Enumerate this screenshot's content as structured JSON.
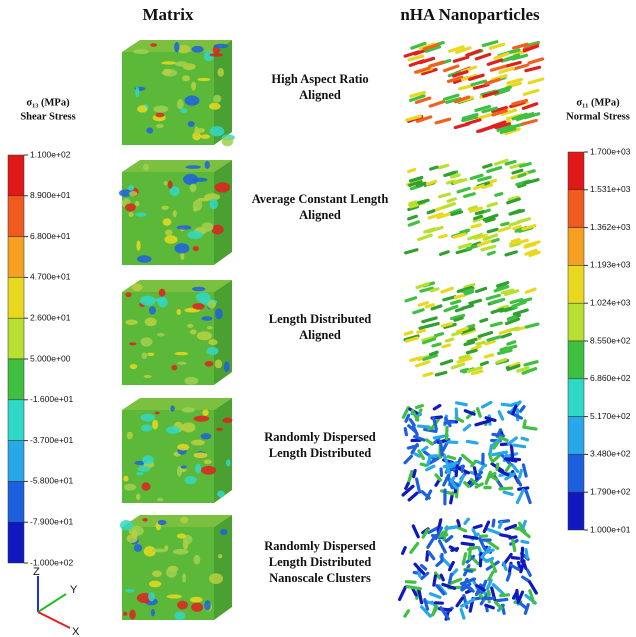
{
  "headers": {
    "matrix": "Matrix",
    "particles": "nHA Nanoparticles"
  },
  "rows": [
    {
      "label": [
        "High Aspect Ratio",
        "Aligned"
      ]
    },
    {
      "label": [
        "Average Constant Length",
        "Aligned"
      ]
    },
    {
      "label": [
        "Length Distributed",
        "Aligned"
      ]
    },
    {
      "label": [
        "Randomly Dispersed",
        "Length Distributed"
      ]
    },
    {
      "label": [
        "Randomly Dispersed",
        "Length Distributed",
        "Nanoscale Clusters"
      ]
    }
  ],
  "left_colorbar": {
    "title": "σ₁₃ (MPa)",
    "subtitle": "Shear Stress",
    "labels": [
      "1.100e+02",
      "8.900e+01",
      "6.800e+01",
      "4.700e+01",
      "2.600e+01",
      "5.000e+00",
      "-1.600e+01",
      "-3.700e+01",
      "-5.800e+01",
      "-7.900e+01",
      "-1.000e+02"
    ]
  },
  "right_colorbar": {
    "title": "σ₁₁ (MPa)",
    "subtitle": "Normal Stress",
    "labels": [
      "1.700e+03",
      "1.531e+03",
      "1.362e+03",
      "1.193e+03",
      "1.024e+03",
      "8.550e+02",
      "6.860e+02",
      "5.170e+02",
      "3.480e+02",
      "1.790e+02",
      "1.000e+01"
    ]
  },
  "colorbar_colors": [
    "#e01818",
    "#f05a1e",
    "#f5a020",
    "#e8d820",
    "#b8e030",
    "#40c040",
    "#30d8c8",
    "#28a8e8",
    "#1c60e0",
    "#1018c0"
  ],
  "axes": {
    "z": "Z",
    "y": "Y",
    "x": "X"
  }
}
